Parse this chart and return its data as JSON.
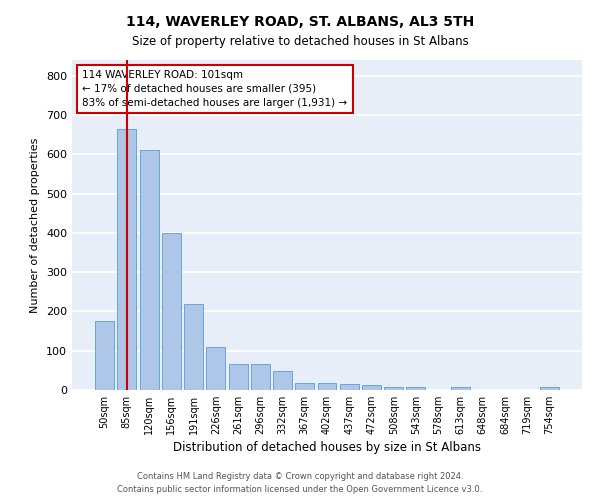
{
  "title": "114, WAVERLEY ROAD, ST. ALBANS, AL3 5TH",
  "subtitle": "Size of property relative to detached houses in St Albans",
  "xlabel": "Distribution of detached houses by size in St Albans",
  "ylabel": "Number of detached properties",
  "bar_labels": [
    "50sqm",
    "85sqm",
    "120sqm",
    "156sqm",
    "191sqm",
    "226sqm",
    "261sqm",
    "296sqm",
    "332sqm",
    "367sqm",
    "402sqm",
    "437sqm",
    "472sqm",
    "508sqm",
    "543sqm",
    "578sqm",
    "613sqm",
    "648sqm",
    "684sqm",
    "719sqm",
    "754sqm"
  ],
  "bar_values": [
    175,
    665,
    610,
    400,
    218,
    110,
    67,
    67,
    48,
    18,
    17,
    15,
    13,
    8,
    8,
    1,
    8,
    1,
    1,
    1,
    7
  ],
  "bar_color": "#aec6e8",
  "bar_edge_color": "#5a9bd4",
  "vline_x": 1,
  "vline_color": "#cc0000",
  "annotation_text": "114 WAVERLEY ROAD: 101sqm\n← 17% of detached houses are smaller (395)\n83% of semi-detached houses are larger (1,931) →",
  "annotation_box_color": "#cc0000",
  "ylim": [
    0,
    840
  ],
  "yticks": [
    0,
    100,
    200,
    300,
    400,
    500,
    600,
    700,
    800
  ],
  "background_color": "#e8eef8",
  "grid_color": "#ffffff",
  "fig_background": "#ffffff",
  "footer_line1": "Contains HM Land Registry data © Crown copyright and database right 2024.",
  "footer_line2": "Contains public sector information licensed under the Open Government Licence v3.0."
}
